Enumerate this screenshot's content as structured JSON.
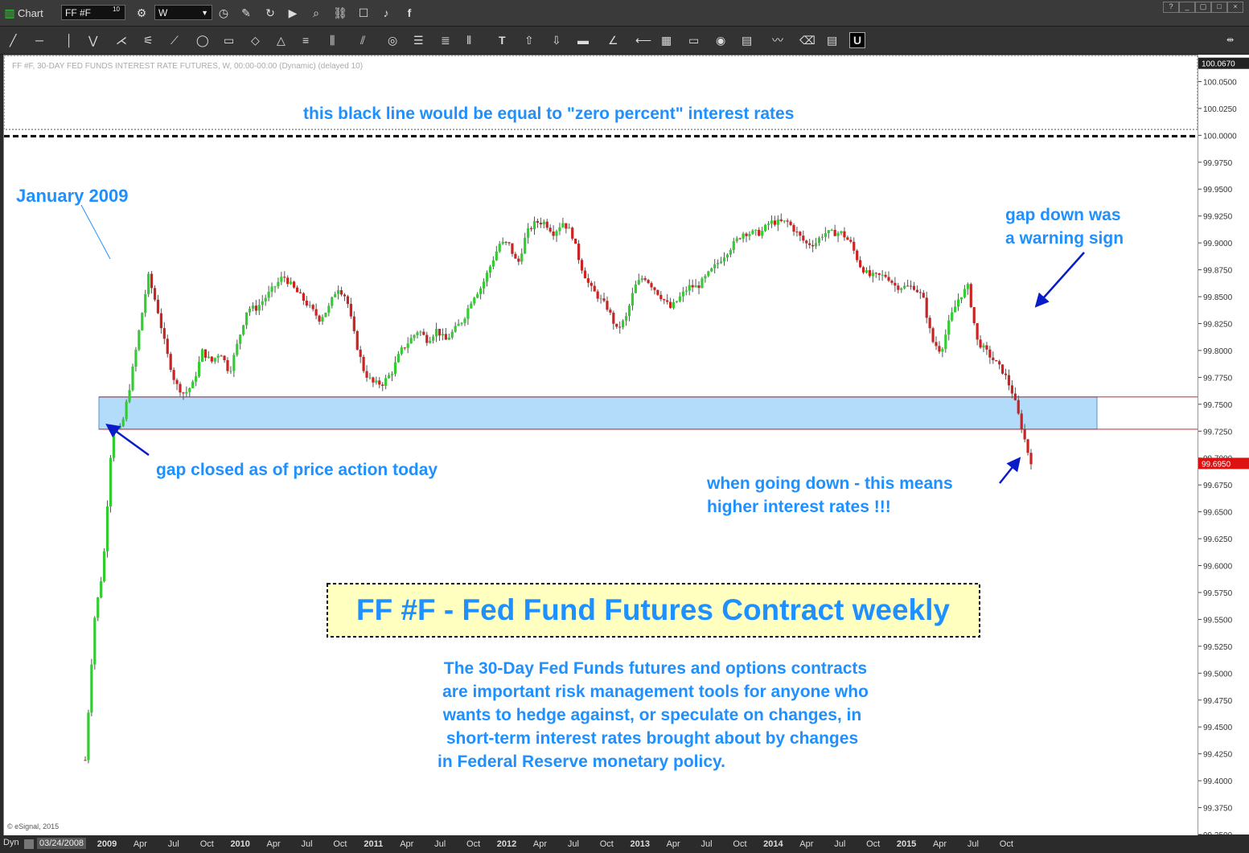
{
  "app": {
    "title": "Chart",
    "symbol": "FF #F",
    "symbol_superscript": "10",
    "interval": "W",
    "copyright": "© eSignal, 2015",
    "mode": "Dyn",
    "start_date": "03/24/2008"
  },
  "chart_header": "FF #F, 30-DAY FED FUNDS INTEREST RATE FUTURES, W, 00:00-00:00 (Dynamic) (delayed 10)",
  "annotations": {
    "zero_line": "this black line would be equal to \"zero percent\" interest rates",
    "jan2009": "January 2009",
    "gap_closed": "gap closed as of price action today",
    "gap_down_1": "gap down was",
    "gap_down_2": "a warning sign",
    "going_down_1": "when going down - this means",
    "going_down_2": "higher interest rates !!!",
    "title_box": "FF #F - Fed Fund Futures Contract weekly",
    "desc": [
      "The 30-Day Fed Funds futures and options contracts",
      "are important risk management tools for anyone who",
      "wants to hedge against, or speculate on changes, in",
      "short-term interest rates brought about by changes",
      "in Federal Reserve monetary policy."
    ]
  },
  "colors": {
    "up": "#33cc33",
    "down": "#cc2222",
    "annotation": "#1e90ff",
    "gap_zone": "#b3dcfb",
    "last_price_bg": "#dd1111"
  },
  "chart_data": {
    "type": "candlestick",
    "title": "FF #F - Fed Fund Futures Contract weekly",
    "ylim": [
      99.35,
      100.075
    ],
    "y_ticks": [
      "100.0500",
      "100.0250",
      "100.0000",
      "99.9750",
      "99.9500",
      "99.9250",
      "99.9000",
      "99.8750",
      "99.8500",
      "99.8250",
      "99.8000",
      "99.7750",
      "99.7500",
      "99.7250",
      "99.7000",
      "99.6750",
      "99.6500",
      "99.6250",
      "99.6000",
      "99.5750",
      "99.5500",
      "99.5250",
      "99.5000",
      "99.4750",
      "99.4500",
      "99.4250",
      "99.4000",
      "99.3750",
      "99.3500"
    ],
    "top_value_label": "100.0670",
    "last_price_label": "99.6950",
    "last_price": 99.695,
    "x_ticks": [
      "2009",
      "Apr",
      "Jul",
      "Oct",
      "2010",
      "Apr",
      "Jul",
      "Oct",
      "2011",
      "Apr",
      "Jul",
      "Oct",
      "2012",
      "Apr",
      "Jul",
      "Oct",
      "2013",
      "Apr",
      "Jul",
      "Oct",
      "2014",
      "Apr",
      "Jul",
      "Oct",
      "2015",
      "Apr",
      "Jul",
      "Oct"
    ],
    "zero_rate_line": 100.0,
    "gap_zone": [
      99.7275,
      99.7575
    ],
    "price_path": [
      [
        99.42,
        99.55,
        99.6,
        99.7275,
        99.7275,
        99.77,
        99.82,
        99.87,
        99.84,
        99.8,
        99.77,
        99.76,
        99.77,
        99.8,
        99.79,
        99.8,
        99.78,
        99.81,
        99.84,
        99.84,
        99.85,
        99.86,
        99.87,
        99.86,
        99.85,
        99.84,
        99.83,
        99.84,
        99.86,
        99.85
      ],
      [
        99.81,
        99.78,
        99.77,
        99.77,
        99.78,
        99.8,
        99.81,
        99.82,
        99.81,
        99.82,
        99.81,
        99.82,
        99.83,
        99.85,
        99.86,
        99.88,
        99.9,
        99.9,
        99.88,
        99.91,
        99.92,
        99.92,
        99.91,
        99.92,
        99.91,
        99.88,
        99.86,
        99.85,
        99.84,
        99.82
      ],
      [
        99.83,
        99.86,
        99.87,
        99.86,
        99.85,
        99.84,
        99.85,
        99.86,
        99.86,
        99.87,
        99.88,
        99.89,
        99.9,
        99.91,
        99.91,
        99.91,
        99.92,
        99.92,
        99.92,
        99.91,
        99.9,
        99.9,
        99.91,
        99.91,
        99.91,
        99.9,
        99.88,
        99.87,
        99.87,
        99.87
      ],
      [
        99.86,
        99.86,
        99.86,
        99.85,
        99.81,
        99.8,
        99.83,
        99.85,
        99.86,
        99.81,
        99.8,
        99.79,
        99.78,
        99.76,
        99.7275,
        99.695
      ]
    ]
  }
}
